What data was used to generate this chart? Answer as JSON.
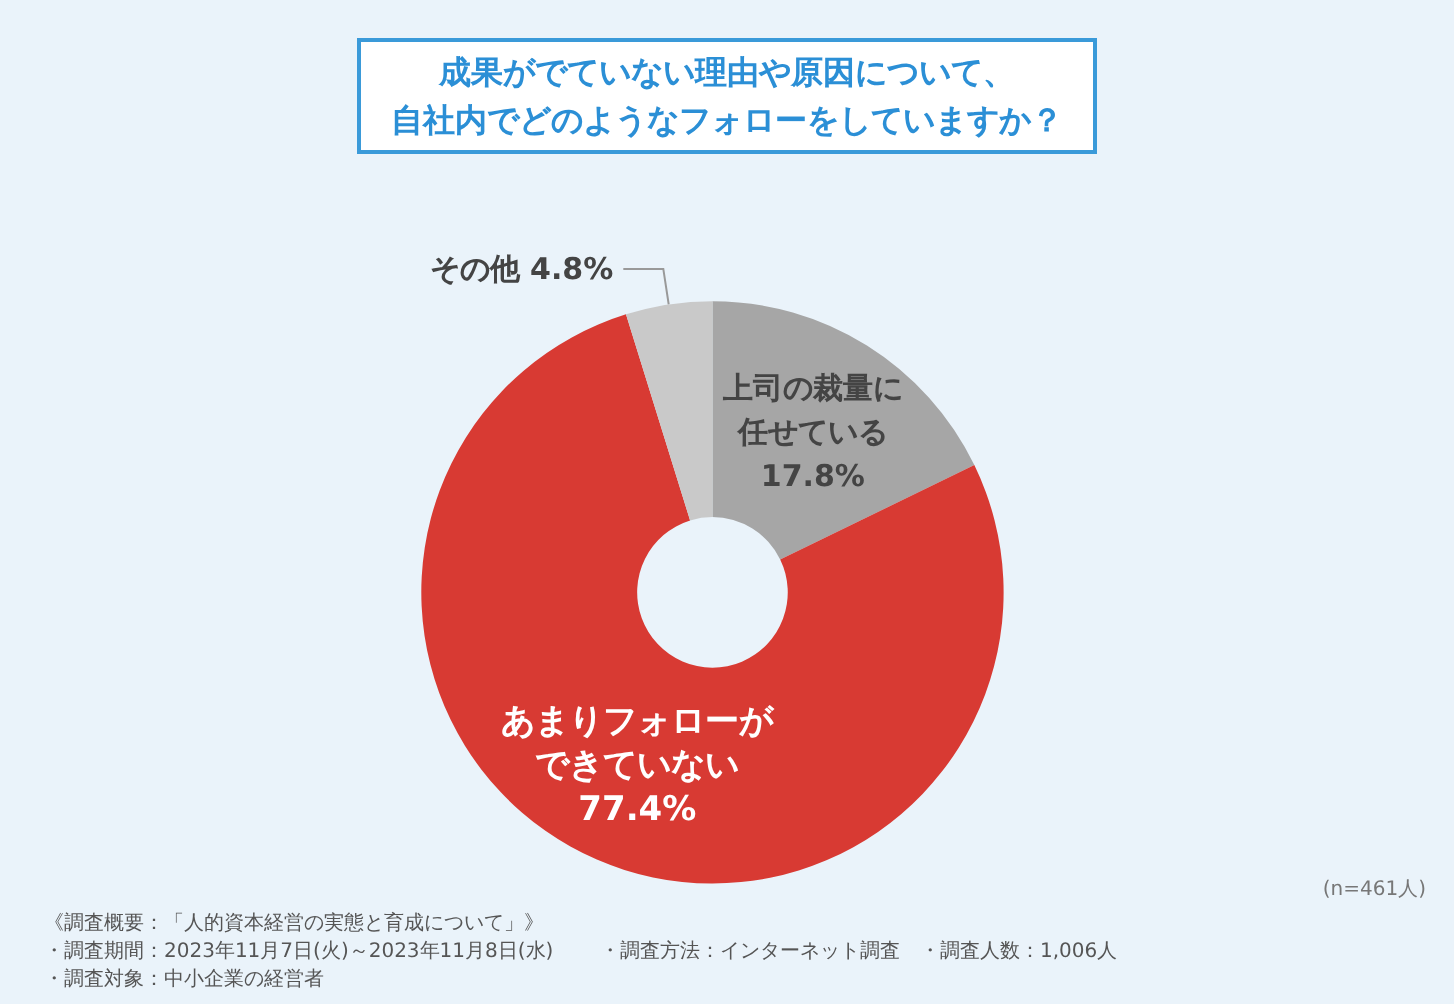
{
  "chart_data": {
    "type": "donut",
    "title": "成果がでていない理由や原因について、",
    "subtitle": "自社内でどのようなフォローをしていますか？",
    "categories": [
      "上司の裁量に任せている",
      "あまりフォローができていない",
      "その他"
    ],
    "values": [
      17.8,
      77.4,
      4.8
    ],
    "colors": [
      "#a6a6a6",
      "#d83a33",
      "#c9c9c9"
    ],
    "value_labels": [
      "17.8%",
      "77.4%",
      "4.8%"
    ],
    "legend": false,
    "annotations": [
      "(n=461人)",
      "《調査概要：「人的資本経営の実態と育成について」》",
      "・調査期間：2023年11月7日(火)～2023年11月8日(水)",
      "・調査対象：中小企業の経営者",
      "・調査方法：インターネット調査",
      "・調査人数：1,006人"
    ]
  }
}
